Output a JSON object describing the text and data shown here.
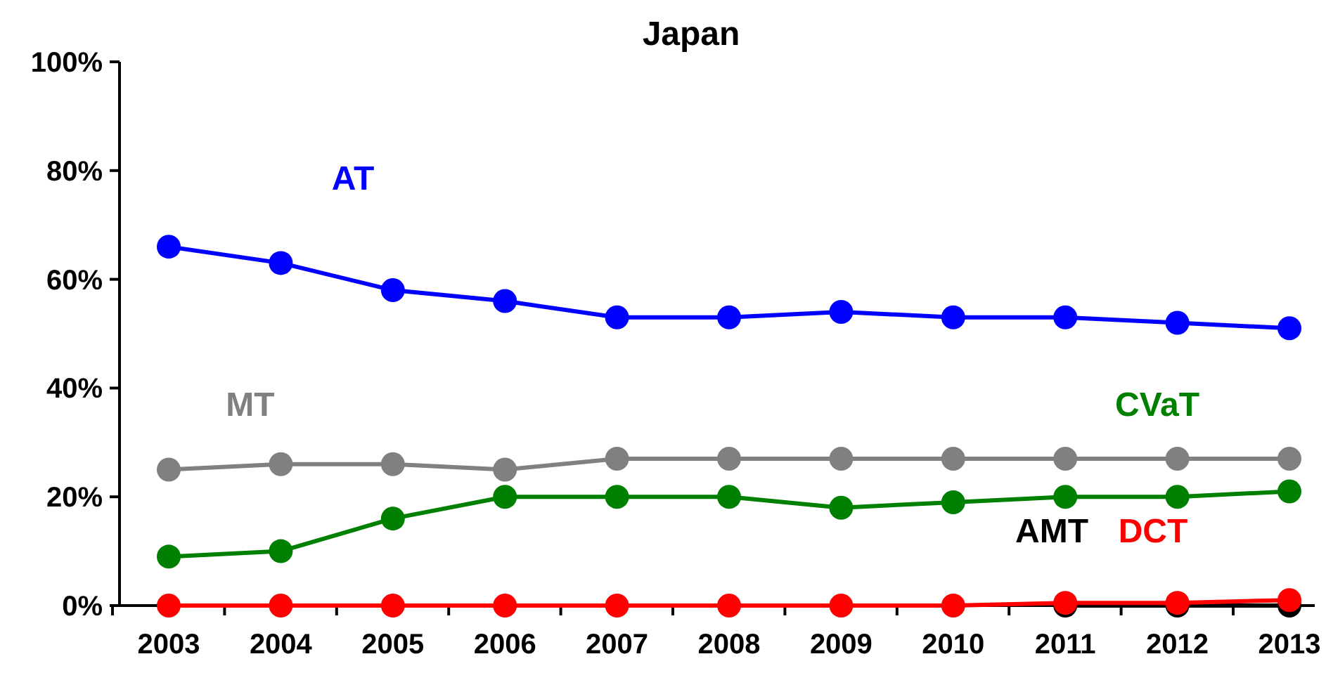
{
  "chart_data": {
    "type": "line",
    "title": "Japan",
    "categories": [
      "2003",
      "2004",
      "2005",
      "2006",
      "2007",
      "2008",
      "2009",
      "2010",
      "2011",
      "2012",
      "2013"
    ],
    "series": [
      {
        "name": "AT",
        "color": "#0000ff",
        "values": [
          66,
          63,
          58,
          56,
          53,
          53,
          54,
          53,
          53,
          52,
          51
        ]
      },
      {
        "name": "MT",
        "color": "#808080",
        "values": [
          25,
          26,
          26,
          25,
          27,
          27,
          27,
          27,
          27,
          27,
          27
        ]
      },
      {
        "name": "CVaT",
        "color": "#008000",
        "values": [
          9,
          10,
          16,
          20,
          20,
          20,
          18,
          19,
          20,
          20,
          21
        ]
      },
      {
        "name": "AMT",
        "color": "#000000",
        "values": [
          null,
          null,
          null,
          null,
          null,
          null,
          null,
          null,
          0,
          0,
          0
        ]
      },
      {
        "name": "DCT",
        "color": "#ff0000",
        "values": [
          0,
          0,
          0,
          0,
          0,
          0,
          0,
          0,
          0.5,
          0.5,
          1
        ]
      }
    ],
    "ylim": [
      0,
      100
    ],
    "yticks": [
      {
        "value": 0,
        "label": "0%"
      },
      {
        "value": 20,
        "label": "20%"
      },
      {
        "value": 40,
        "label": "40%"
      },
      {
        "value": 60,
        "label": "60%"
      },
      {
        "value": 80,
        "label": "80%"
      },
      {
        "value": 100,
        "label": "100%"
      }
    ],
    "grid": false,
    "marker": "circle",
    "line_style": "solid"
  }
}
